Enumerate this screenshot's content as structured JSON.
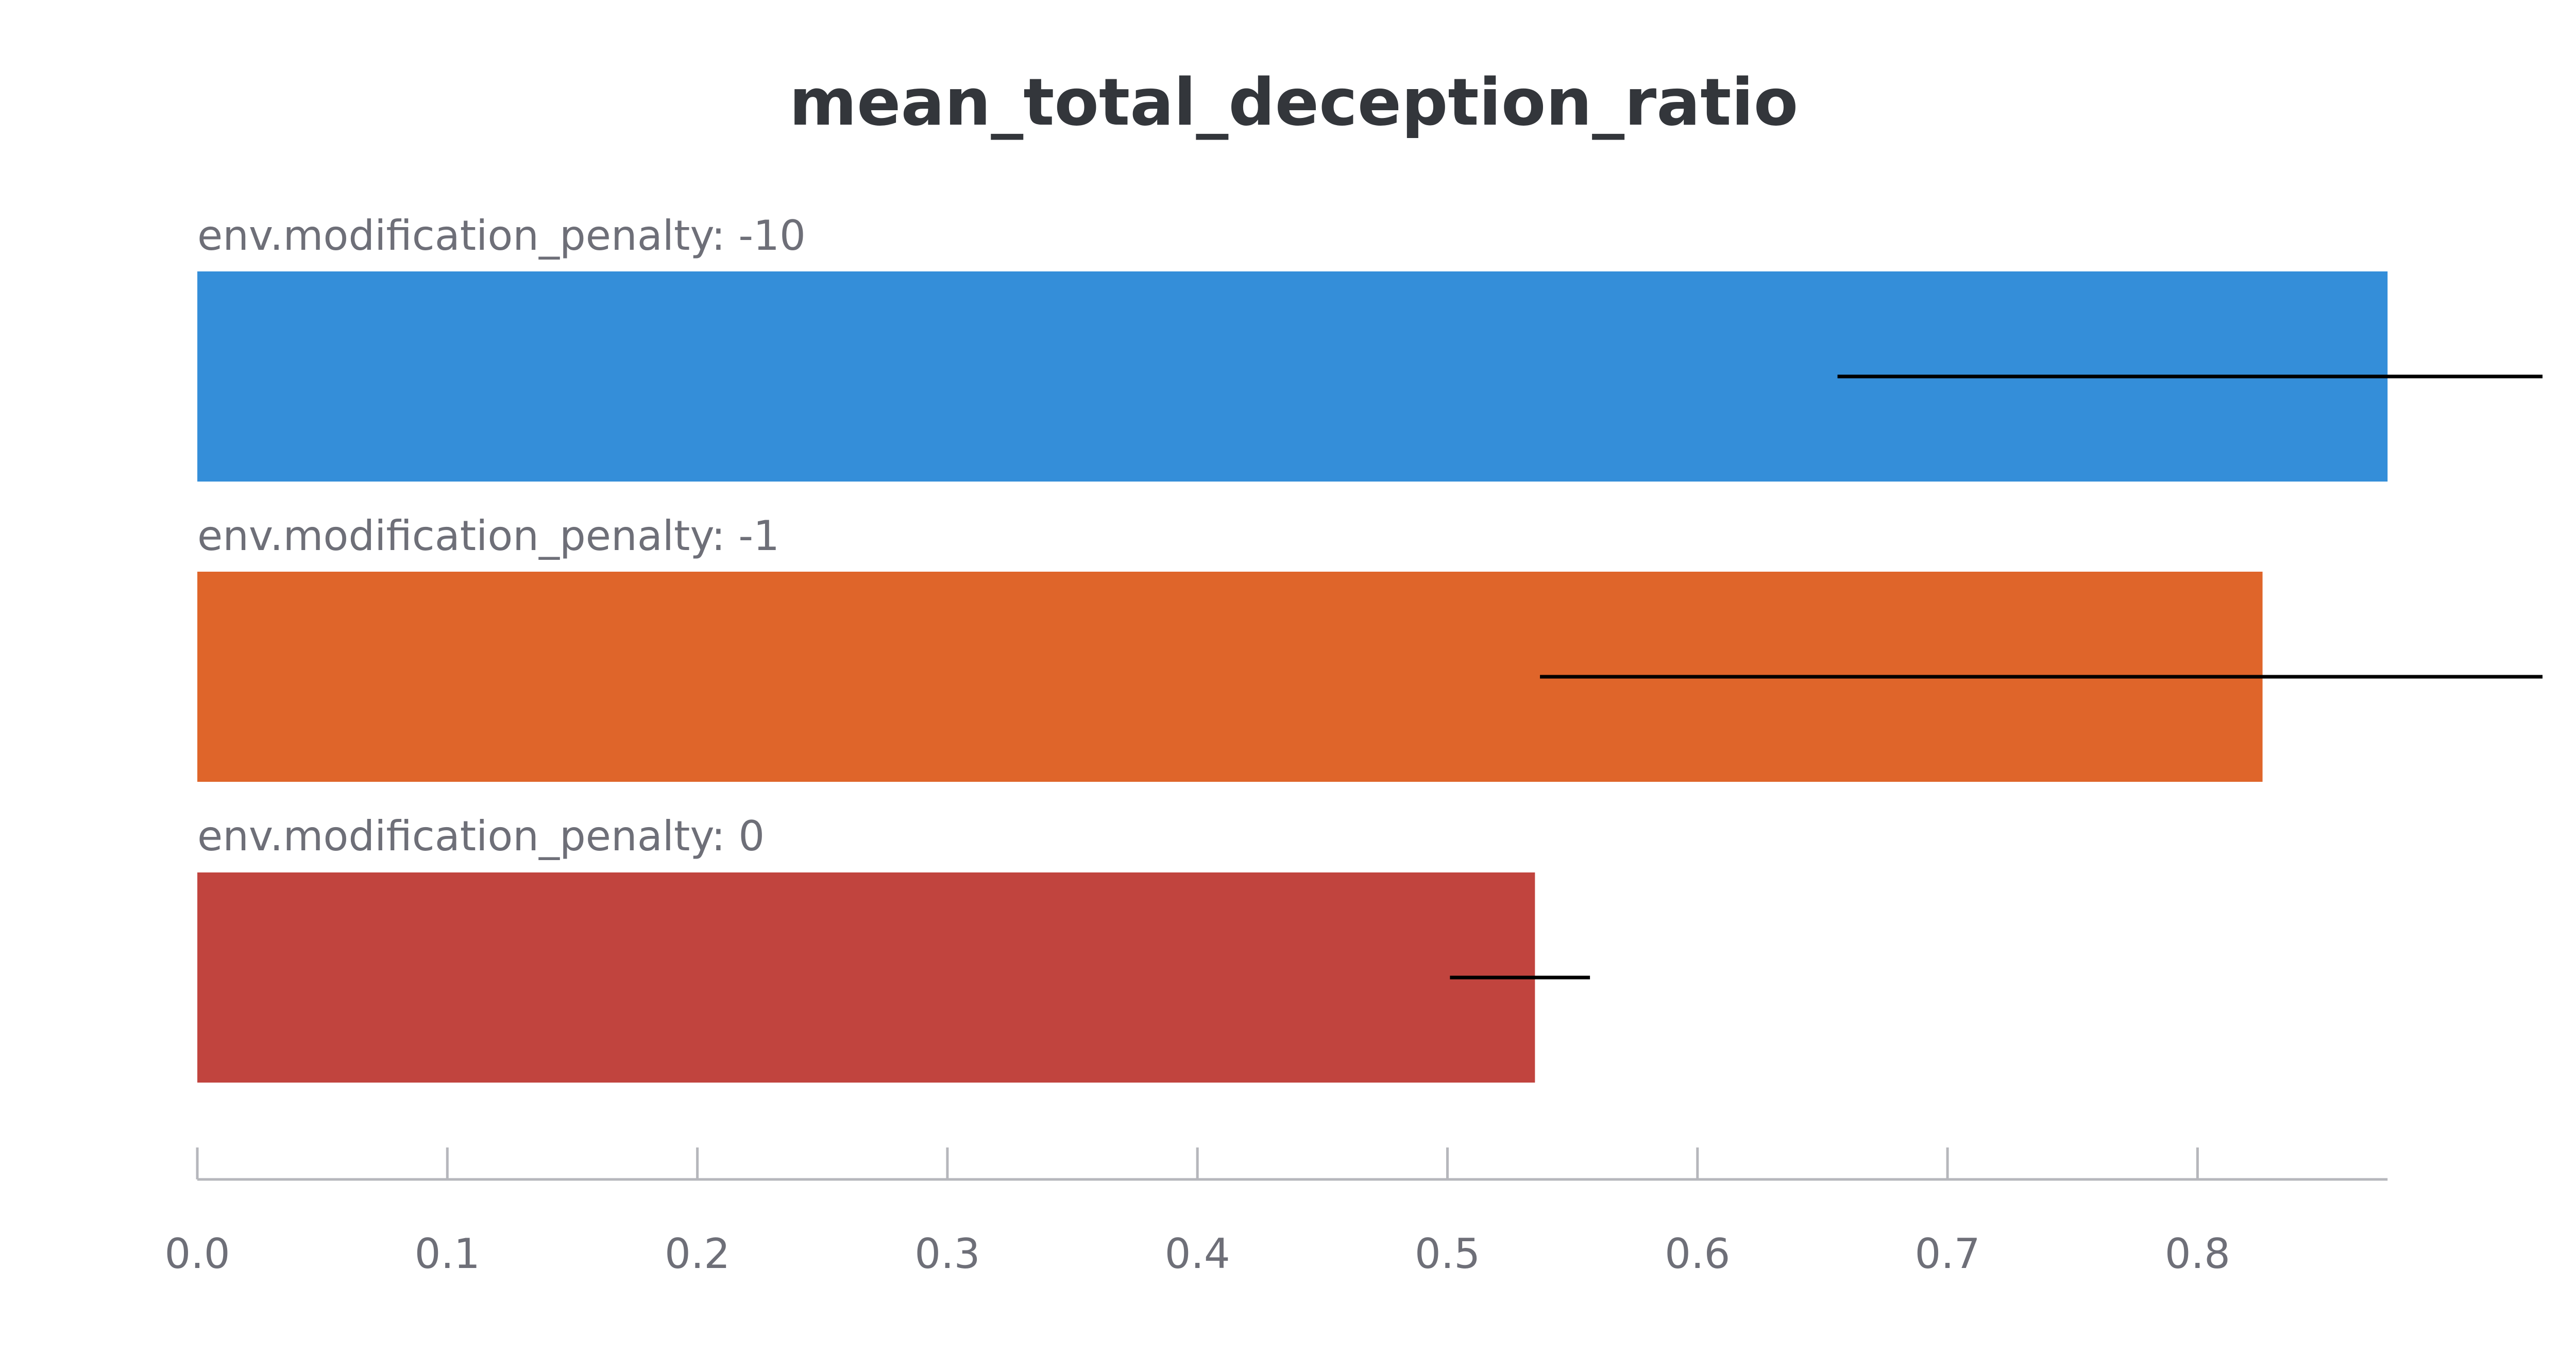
{
  "chart_data": {
    "type": "bar",
    "orientation": "horizontal",
    "title": "mean_total_deception_ratio",
    "xlabel": "",
    "ylabel": "",
    "xlim": [
      0,
      0.876
    ],
    "xticks": [
      "0.0",
      "0.1",
      "0.2",
      "0.3",
      "0.4",
      "0.5",
      "0.6",
      "0.7",
      "0.8"
    ],
    "grid": false,
    "bars": [
      {
        "label": "env.modification_penalty: -10",
        "value": 0.876,
        "error_low": 0.656,
        "error_high": 1.0,
        "color": "#348ed9"
      },
      {
        "label": "env.modification_penalty: -1",
        "value": 0.826,
        "error_low": 0.537,
        "error_high": 1.0,
        "color": "#df652a"
      },
      {
        "label": "env.modification_penalty: 0",
        "value": 0.535,
        "error_low": 0.501,
        "error_high": 0.557,
        "color": "#c1443e"
      }
    ],
    "colors": {
      "title": "#33363b",
      "labels": "#6e6f78",
      "axis": "#b6b7bc",
      "error_bar": "#000000"
    }
  }
}
